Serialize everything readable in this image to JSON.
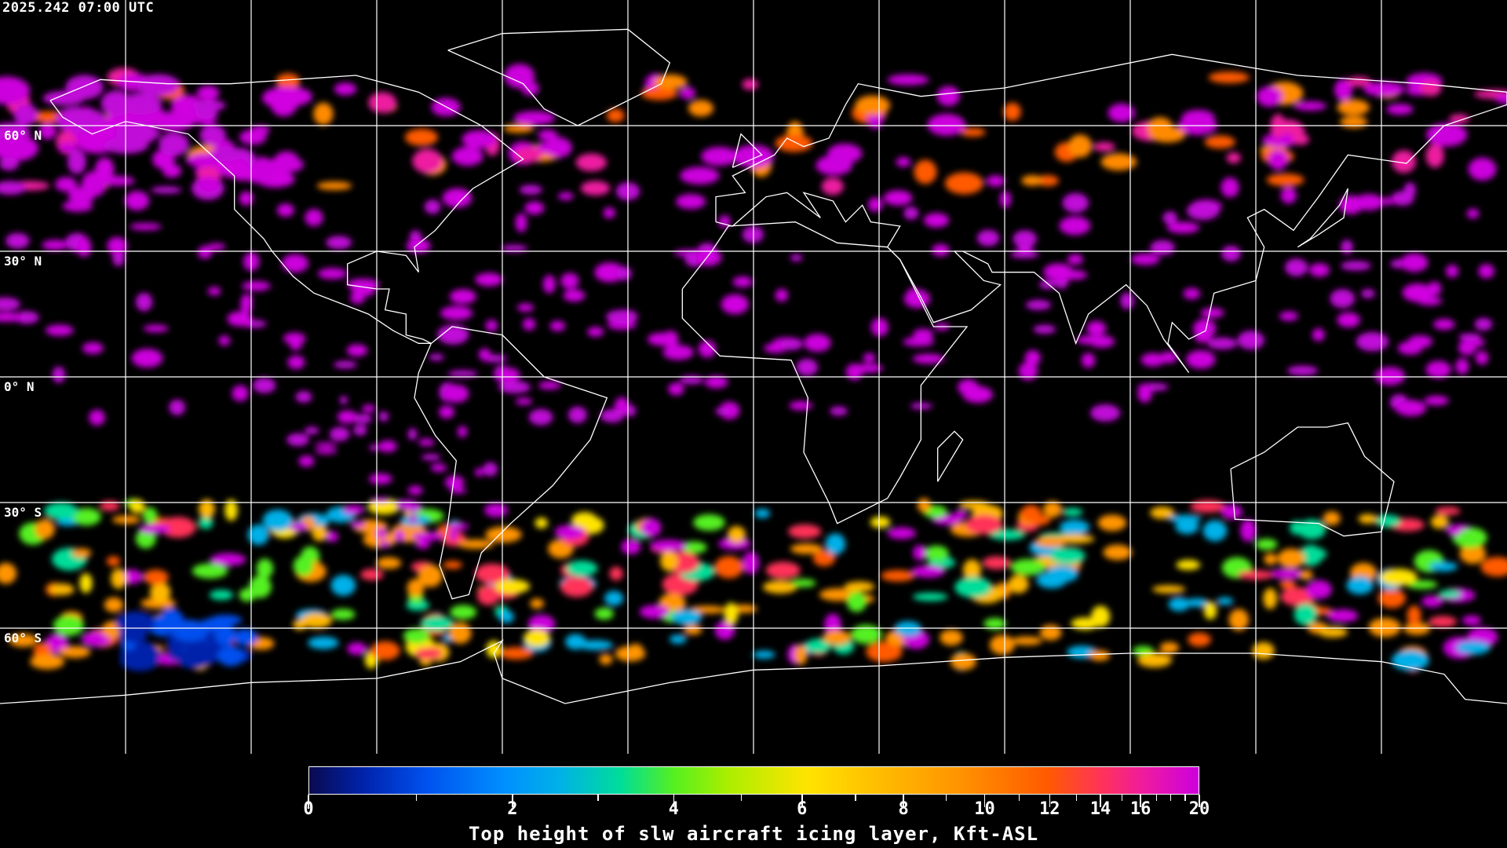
{
  "timestamp": "2025.242 07:00 UTC",
  "latitude_labels": [
    "60° N",
    "30° N",
    "0° N",
    "30° S",
    "60° S"
  ],
  "colorbar": {
    "title": "Top height of slw aircraft icing layer, Kft-ASL",
    "tick_labels": [
      "0",
      "2",
      "4",
      "6",
      "8",
      "10",
      "12",
      "14",
      "16",
      "20"
    ],
    "range": [
      0,
      20
    ],
    "colors": [
      "#0a0a50",
      "#0050ee",
      "#0090ff",
      "#00dd9a",
      "#55f020",
      "#ffe400",
      "#ff9400",
      "#ff5a00",
      "#ff3358",
      "#cc00dd"
    ]
  },
  "map": {
    "projection": "equirectangular",
    "grid_spacing_degrees": 30,
    "gridline_color": "#ffffff",
    "coastline_color": "#ffffff",
    "background_color": "#000000"
  }
}
